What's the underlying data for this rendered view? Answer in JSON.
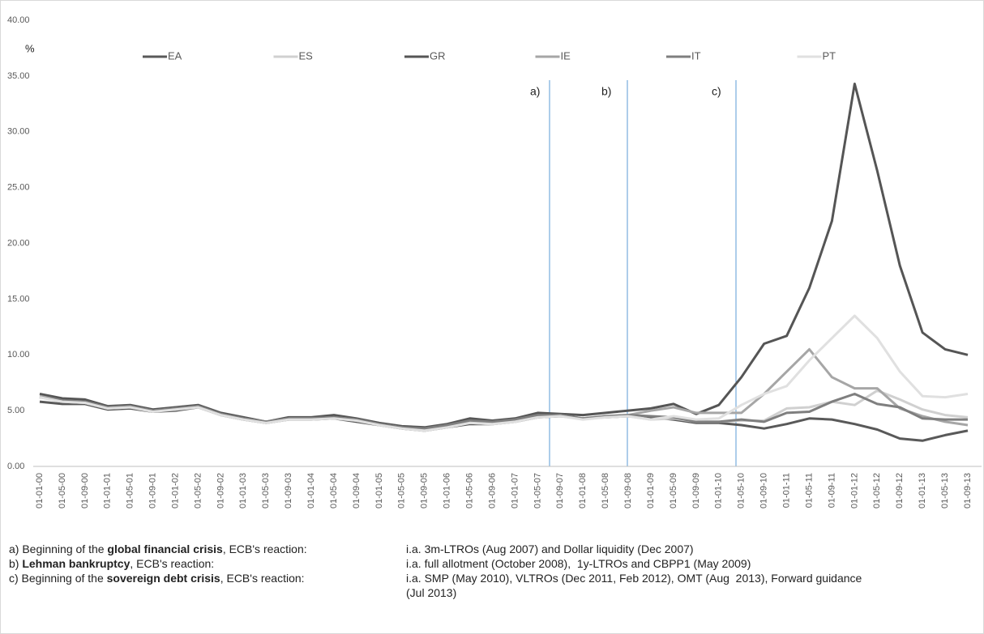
{
  "chart_data": {
    "type": "line",
    "y_unit": "%",
    "categories": [
      "01-01-00",
      "01-05-00",
      "01-09-00",
      "01-01-01",
      "01-05-01",
      "01-09-01",
      "01-01-02",
      "01-05-02",
      "01-09-02",
      "01-01-03",
      "01-05-03",
      "01-09-03",
      "01-01-04",
      "01-05-04",
      "01-09-04",
      "01-01-05",
      "01-05-05",
      "01-09-05",
      "01-01-06",
      "01-05-06",
      "01-09-06",
      "01-01-07",
      "01-05-07",
      "01-09-07",
      "01-01-08",
      "01-05-08",
      "01-09-08",
      "01-01-09",
      "01-05-09",
      "01-09-09",
      "01-01-10",
      "01-05-10",
      "01-09-10",
      "01-01-11",
      "01-05-11",
      "01-09-11",
      "01-01-12",
      "01-05-12",
      "01-09-12",
      "01-01-13",
      "01-05-13",
      "01-09-13"
    ],
    "series": [
      {
        "name": "EA",
        "color": "#595959",
        "values": [
          5.8,
          5.6,
          5.6,
          5.1,
          5.2,
          4.9,
          5.0,
          5.3,
          4.6,
          4.2,
          3.9,
          4.2,
          4.2,
          4.3,
          4.0,
          3.7,
          3.4,
          3.2,
          3.5,
          3.8,
          3.8,
          4.0,
          4.4,
          4.5,
          4.3,
          4.4,
          4.5,
          4.4,
          4.2,
          3.9,
          3.9,
          3.7,
          3.4,
          3.8,
          4.3,
          4.2,
          3.8,
          3.3,
          2.5,
          2.3,
          2.8,
          3.2
        ]
      },
      {
        "name": "ES",
        "color": "#d0d0d0",
        "values": [
          6.2,
          5.8,
          5.7,
          5.2,
          5.3,
          5.0,
          5.1,
          5.4,
          4.7,
          4.3,
          4.0,
          4.3,
          4.3,
          4.4,
          4.1,
          3.8,
          3.5,
          3.3,
          3.5,
          3.9,
          3.8,
          4.0,
          4.5,
          4.6,
          4.3,
          4.4,
          4.5,
          4.2,
          4.3,
          4.0,
          4.0,
          4.1,
          4.1,
          5.2,
          5.3,
          5.8,
          5.5,
          6.8,
          6.0,
          5.1,
          4.6,
          4.4
        ]
      },
      {
        "name": "GR",
        "color": "#555555",
        "values": [
          6.5,
          6.1,
          6.0,
          5.4,
          5.5,
          5.1,
          5.3,
          5.5,
          4.8,
          4.4,
          4.0,
          4.4,
          4.4,
          4.6,
          4.3,
          3.9,
          3.6,
          3.5,
          3.8,
          4.3,
          4.1,
          4.3,
          4.8,
          4.7,
          4.6,
          4.8,
          5.0,
          5.2,
          5.6,
          4.7,
          5.5,
          8.0,
          11.0,
          11.7,
          16.0,
          22.0,
          34.3,
          26.5,
          18.0,
          12.0,
          10.5,
          10.0
        ]
      },
      {
        "name": "IE",
        "color": "#a6a6a6",
        "values": [
          6.3,
          5.9,
          5.8,
          5.3,
          5.4,
          5.0,
          5.2,
          5.4,
          4.7,
          4.3,
          4.0,
          4.3,
          4.3,
          4.4,
          4.2,
          3.8,
          3.5,
          3.3,
          3.6,
          4.0,
          3.9,
          4.1,
          4.5,
          4.6,
          4.3,
          4.5,
          4.6,
          5.0,
          5.3,
          4.8,
          4.8,
          4.8,
          6.5,
          8.5,
          10.5,
          8.0,
          7.0,
          7.0,
          5.2,
          4.5,
          4.0,
          3.7
        ]
      },
      {
        "name": "IT",
        "color": "#7f7f7f",
        "values": [
          6.2,
          5.9,
          5.8,
          5.3,
          5.4,
          5.0,
          5.2,
          5.4,
          4.7,
          4.3,
          4.0,
          4.3,
          4.3,
          4.4,
          4.2,
          3.8,
          3.5,
          3.4,
          3.7,
          4.1,
          4.0,
          4.2,
          4.6,
          4.6,
          4.3,
          4.5,
          4.6,
          4.5,
          4.4,
          4.0,
          4.0,
          4.2,
          4.0,
          4.8,
          4.9,
          5.8,
          6.5,
          5.6,
          5.3,
          4.3,
          4.2,
          4.2
        ]
      },
      {
        "name": "PT",
        "color": "#e0e0e0",
        "values": [
          6.2,
          5.8,
          5.7,
          5.2,
          5.3,
          4.9,
          5.1,
          5.3,
          4.6,
          4.2,
          3.9,
          4.2,
          4.2,
          4.3,
          4.1,
          3.7,
          3.4,
          3.2,
          3.5,
          3.9,
          3.8,
          4.0,
          4.4,
          4.5,
          4.2,
          4.4,
          4.5,
          4.2,
          4.5,
          4.2,
          4.3,
          5.5,
          6.5,
          7.2,
          9.5,
          11.5,
          13.5,
          11.5,
          8.5,
          6.3,
          6.2,
          6.5
        ]
      }
    ],
    "ylim": [
      0,
      40
    ],
    "yticks": [
      {
        "value": 0,
        "label": "0.00"
      },
      {
        "value": 5,
        "label": "5.00"
      },
      {
        "value": 10,
        "label": "10.00"
      },
      {
        "value": 15,
        "label": "15.00"
      },
      {
        "value": 20,
        "label": "20.00"
      },
      {
        "value": 25,
        "label": "25.00"
      },
      {
        "value": 30,
        "label": "30.00"
      },
      {
        "value": 35,
        "label": "35.00"
      },
      {
        "value": 40,
        "label": "40.00"
      }
    ],
    "annotations": [
      "a)",
      "b)",
      "c)"
    ]
  },
  "notes": [
    {
      "prefix": "a) Beginning of the ",
      "bold": "global financial crisis",
      "suffix": ", ECB's reaction:",
      "detail": "i.a. 3m-LTROs (Aug 2007) and Dollar liquidity (Dec 2007)"
    },
    {
      "prefix": "b) ",
      "bold": "Lehman bankruptcy",
      "suffix": ", ECB's reaction:",
      "detail": "i.a. full allotment (October 2008),  1y-LTROs and CBPP1 (May 2009)"
    },
    {
      "prefix": "c) Beginning of the ",
      "bold": "sovereign debt crisis",
      "suffix": ", ECB's reaction:",
      "detail": "i.a. SMP (May 2010), VLTROs (Dec 2011, Feb 2012), OMT (Aug  2013), Forward guidance (Jul 2013)"
    }
  ]
}
